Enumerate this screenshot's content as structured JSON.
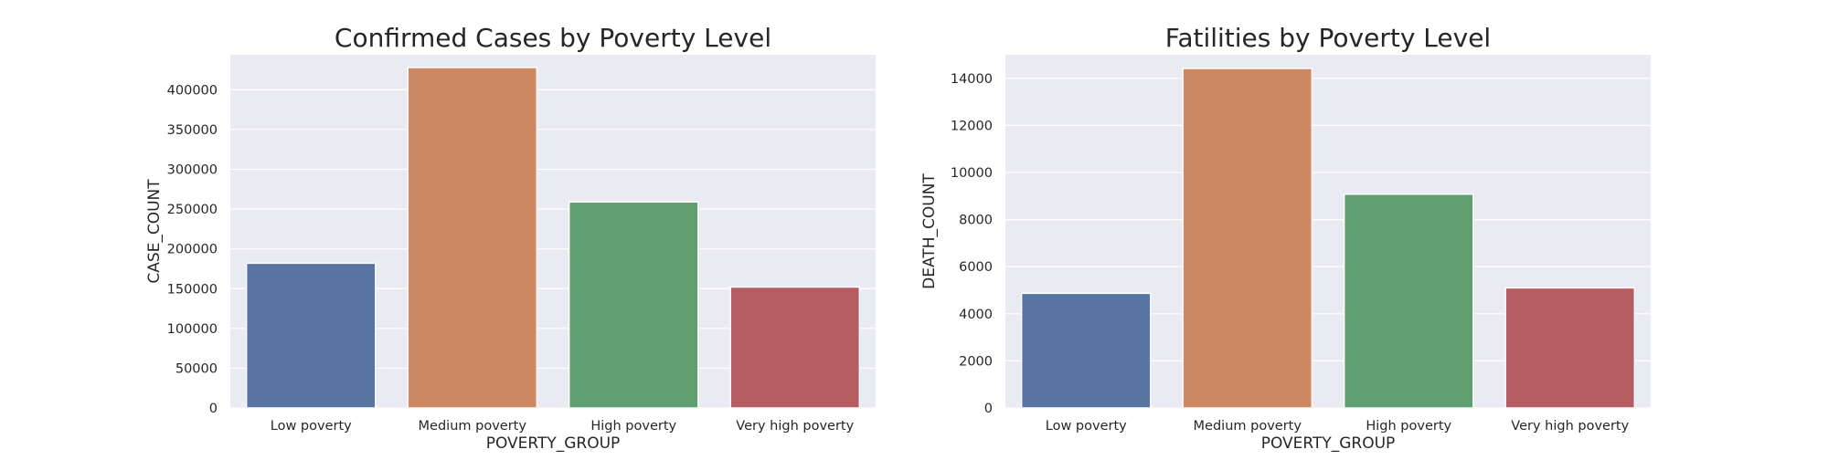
{
  "palette": [
    "#5975a4",
    "#cc8963",
    "#5f9e6e",
    "#b55d60"
  ],
  "plot_background": "#eaeaf2",
  "grid_color": "#ffffff",
  "chart_data": [
    {
      "type": "bar",
      "title": "Confirmed Cases by Poverty Level",
      "xlabel": "POVERTY_GROUP",
      "ylabel": "CASE_COUNT",
      "categories": [
        "Low poverty",
        "Medium poverty",
        "High poverty",
        "Very high poverty"
      ],
      "values": [
        182000,
        428000,
        259000,
        152000
      ],
      "ylim": [
        0,
        444000
      ],
      "yticks": [
        0,
        50000,
        100000,
        150000,
        200000,
        250000,
        300000,
        350000,
        400000
      ],
      "grid": true,
      "legend": false
    },
    {
      "type": "bar",
      "title": "Fatilities by Poverty Level",
      "xlabel": "POVERTY_GROUP",
      "ylabel": "DEATH_COUNT",
      "categories": [
        "Low poverty",
        "Medium poverty",
        "High poverty",
        "Very high poverty"
      ],
      "values": [
        4870,
        14420,
        9080,
        5100
      ],
      "ylim": [
        0,
        15000
      ],
      "yticks": [
        0,
        2000,
        4000,
        6000,
        8000,
        10000,
        12000,
        14000
      ],
      "grid": true,
      "legend": false
    }
  ]
}
